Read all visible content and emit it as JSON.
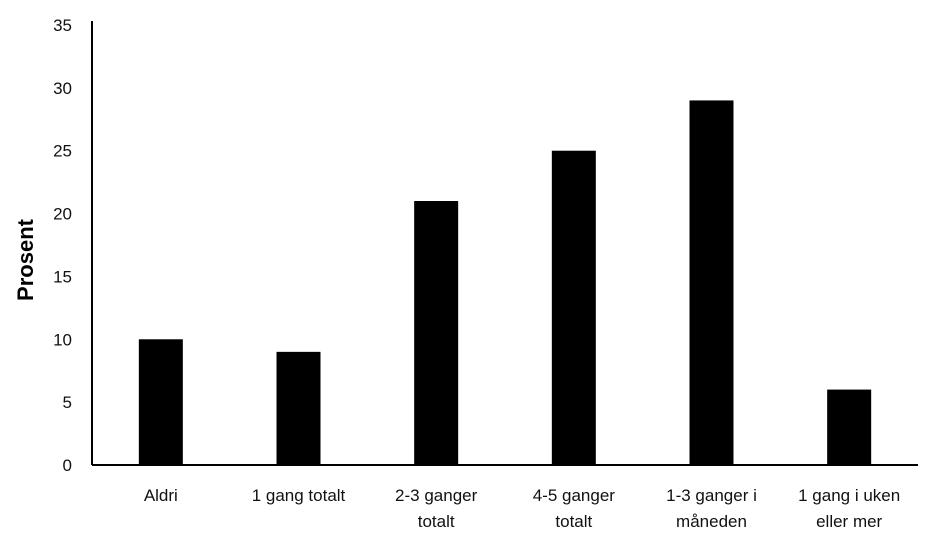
{
  "chart_data": {
    "type": "bar",
    "categories": [
      [
        "Aldri"
      ],
      [
        "1 gang totalt"
      ],
      [
        "2-3 ganger",
        "totalt"
      ],
      [
        "4-5 ganger",
        "totalt"
      ],
      [
        "1-3 ganger i",
        "måneden"
      ],
      [
        "1 gang i uken",
        "eller mer"
      ]
    ],
    "values": [
      10,
      9,
      21,
      25,
      29,
      6
    ],
    "title": "",
    "xlabel": "",
    "ylabel": "Prosent",
    "ylim": [
      0,
      35
    ],
    "yticks": [
      0,
      5,
      10,
      15,
      20,
      25,
      30,
      35
    ],
    "grid": false,
    "bar_color": "#000000",
    "axis_color": "#000000"
  }
}
